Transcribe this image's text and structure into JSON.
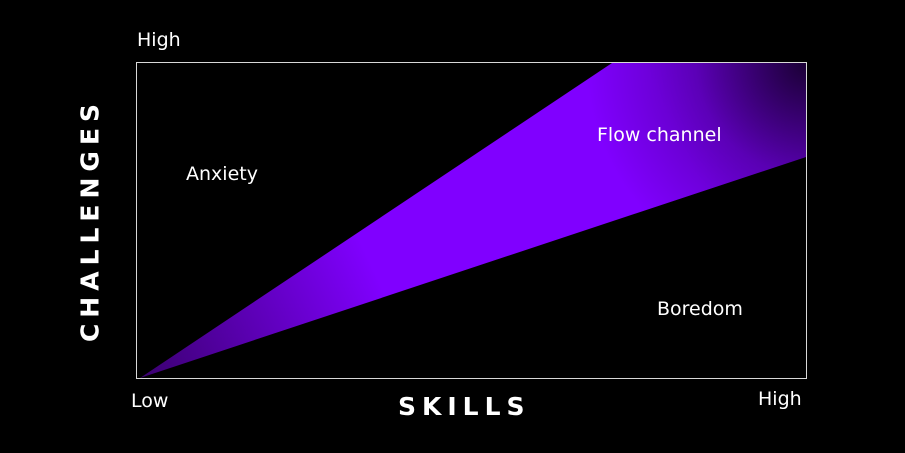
{
  "diagram": {
    "y_axis": {
      "title": "CHALLENGES",
      "high_label": "High"
    },
    "x_axis": {
      "title": "SKILLS",
      "low_label": "Low",
      "high_label": "High"
    },
    "regions": {
      "anxiety": "Anxiety",
      "flow": "Flow channel",
      "boredom": "Boredom"
    },
    "colors": {
      "background": "#000000",
      "flow_band": "#8000ff",
      "frame": "#ffffff",
      "text": "#ffffff"
    }
  }
}
